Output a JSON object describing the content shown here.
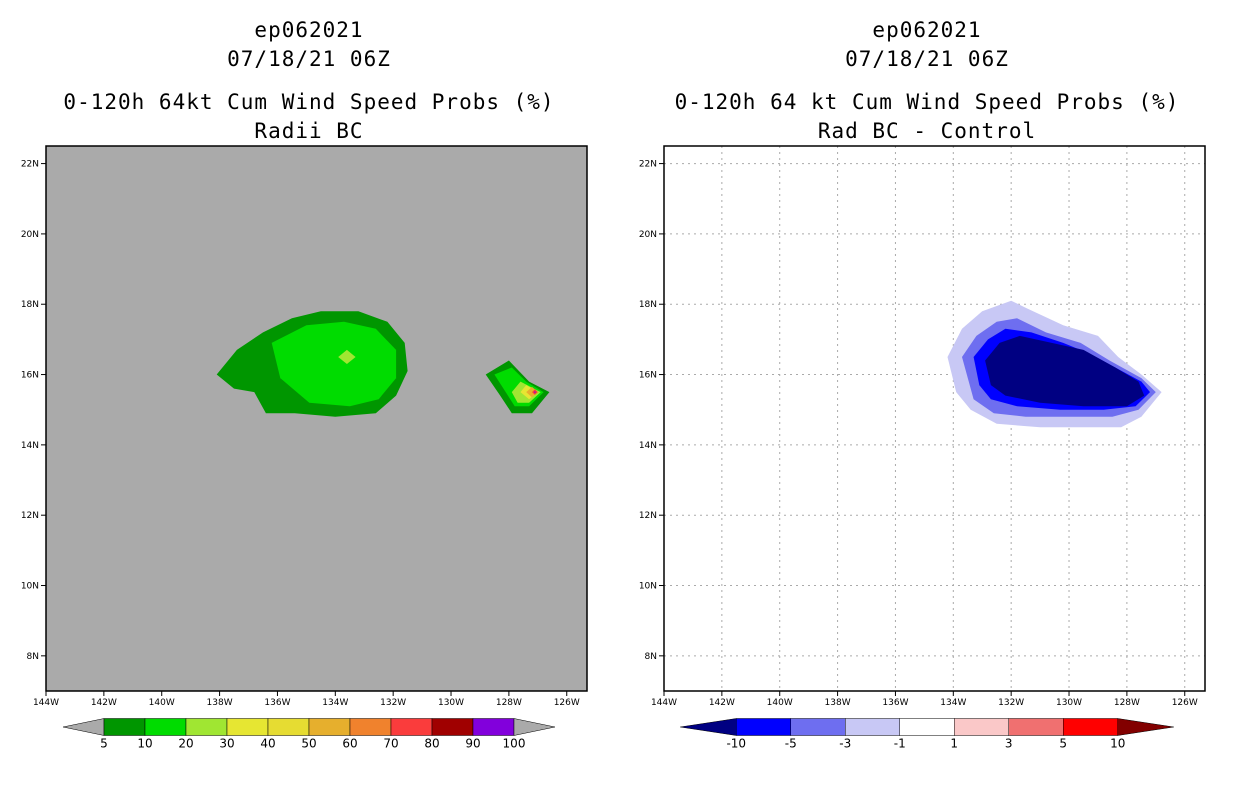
{
  "panels": [
    {
      "storm_id": "ep062021",
      "datetime": "07/18/21 06Z",
      "title": "0-120h 64kt Cum Wind Speed Probs (%)",
      "subtitle": "Radii BC"
    },
    {
      "storm_id": "ep062021",
      "datetime": "07/18/21 06Z",
      "title": "0-120h 64 kt Cum Wind Speed Probs (%)",
      "subtitle": "Rad BC - Control"
    }
  ],
  "chart_data": [
    {
      "type": "heatmap",
      "title": "0-120h 64kt Cum Wind Speed Probs (%)",
      "subtitle": "Radii BC",
      "x_ticks": [
        "144W",
        "142W",
        "140W",
        "138W",
        "136W",
        "134W",
        "132W",
        "130W",
        "128W",
        "126W"
      ],
      "y_ticks": [
        "8N",
        "10N",
        "12N",
        "14N",
        "16N",
        "18N",
        "20N",
        "22N"
      ],
      "xlim": [
        -144,
        -125.3
      ],
      "ylim": [
        7,
        22.5
      ],
      "grid": false,
      "background_color": "#aaaaaa",
      "colorbar": {
        "labels": [
          "5",
          "10",
          "20",
          "30",
          "40",
          "50",
          "60",
          "70",
          "80",
          "90",
          "100"
        ],
        "colors": [
          "#009600",
          "#00dc00",
          "#a0e632",
          "#e6e632",
          "#e6dc32",
          "#e6af2d",
          "#f0822d",
          "#fa3c3c",
          "#a00000",
          "#8200dc"
        ],
        "under_color": "#aaaaaa",
        "over_color": "#aaaaaa"
      },
      "contours": [
        {
          "level": 5,
          "color": "#009600",
          "points": [
            [
              -138.1,
              16.0
            ],
            [
              -137.4,
              16.7
            ],
            [
              -136.5,
              17.2
            ],
            [
              -135.5,
              17.6
            ],
            [
              -134.5,
              17.8
            ],
            [
              -133.2,
              17.8
            ],
            [
              -132.2,
              17.5
            ],
            [
              -131.6,
              16.9
            ],
            [
              -131.5,
              16.1
            ],
            [
              -131.9,
              15.4
            ],
            [
              -132.6,
              14.9
            ],
            [
              -134.0,
              14.8
            ],
            [
              -135.4,
              14.9
            ],
            [
              -136.4,
              14.9
            ],
            [
              -136.8,
              15.5
            ],
            [
              -137.5,
              15.6
            ],
            [
              -138.1,
              16.0
            ]
          ]
        },
        {
          "level": 10,
          "color": "#00dc00",
          "points": [
            [
              -136.2,
              16.9
            ],
            [
              -135.0,
              17.4
            ],
            [
              -133.7,
              17.5
            ],
            [
              -132.6,
              17.3
            ],
            [
              -131.9,
              16.7
            ],
            [
              -131.9,
              15.9
            ],
            [
              -132.5,
              15.3
            ],
            [
              -133.5,
              15.1
            ],
            [
              -134.9,
              15.2
            ],
            [
              -135.9,
              15.9
            ],
            [
              -136.2,
              16.9
            ]
          ]
        },
        {
          "level": 20,
          "color": "#a0e632",
          "points": [
            [
              -133.6,
              16.7
            ],
            [
              -133.3,
              16.5
            ],
            [
              -133.6,
              16.3
            ],
            [
              -133.9,
              16.5
            ],
            [
              -133.6,
              16.7
            ]
          ]
        },
        {
          "level": 5,
          "color": "#009600",
          "points": [
            [
              -128.8,
              16.0
            ],
            [
              -128.0,
              16.4
            ],
            [
              -127.3,
              15.8
            ],
            [
              -126.6,
              15.5
            ],
            [
              -127.2,
              14.9
            ],
            [
              -127.9,
              14.9
            ],
            [
              -128.3,
              15.4
            ],
            [
              -128.8,
              16.0
            ]
          ]
        },
        {
          "level": 10,
          "color": "#00dc00",
          "points": [
            [
              -128.5,
              16.0
            ],
            [
              -127.9,
              16.2
            ],
            [
              -127.4,
              15.8
            ],
            [
              -126.8,
              15.5
            ],
            [
              -127.3,
              15.1
            ],
            [
              -127.8,
              15.1
            ],
            [
              -128.5,
              16.0
            ]
          ]
        },
        {
          "level": 20,
          "color": "#a0e632",
          "points": [
            [
              -127.6,
              15.8
            ],
            [
              -126.9,
              15.5
            ],
            [
              -127.3,
              15.2
            ],
            [
              -127.7,
              15.2
            ],
            [
              -127.9,
              15.5
            ],
            [
              -127.6,
              15.8
            ]
          ]
        },
        {
          "level": 30,
          "color": "#e6e632",
          "points": [
            [
              -127.4,
              15.7
            ],
            [
              -127.0,
              15.5
            ],
            [
              -127.3,
              15.3
            ],
            [
              -127.6,
              15.5
            ],
            [
              -127.4,
              15.7
            ]
          ]
        },
        {
          "level": 50,
          "color": "#e6af2d",
          "points": [
            [
              -127.2,
              15.65
            ],
            [
              -127.0,
              15.5
            ],
            [
              -127.2,
              15.35
            ],
            [
              -127.4,
              15.5
            ],
            [
              -127.2,
              15.65
            ]
          ]
        },
        {
          "level": 70,
          "color": "#fa3c3c",
          "points": [
            [
              -127.1,
              15.58
            ],
            [
              -127.0,
              15.5
            ],
            [
              -127.1,
              15.42
            ],
            [
              -127.2,
              15.5
            ],
            [
              -127.1,
              15.58
            ]
          ]
        },
        {
          "level": 90,
          "color": "#8200dc",
          "points": [
            [
              -127.1,
              15.53
            ],
            [
              -127.07,
              15.5
            ],
            [
              -127.1,
              15.47
            ],
            [
              -127.13,
              15.5
            ],
            [
              -127.1,
              15.53
            ]
          ]
        }
      ]
    },
    {
      "type": "heatmap",
      "title": "0-120h 64 kt Cum Wind Speed Probs (%)",
      "subtitle": "Rad BC - Control",
      "x_ticks": [
        "144W",
        "142W",
        "140W",
        "138W",
        "136W",
        "134W",
        "132W",
        "130W",
        "128W",
        "126W"
      ],
      "y_ticks": [
        "8N",
        "10N",
        "12N",
        "14N",
        "16N",
        "18N",
        "20N",
        "22N"
      ],
      "xlim": [
        -144,
        -125.3
      ],
      "ylim": [
        7,
        22.5
      ],
      "grid": true,
      "background_color": "#ffffff",
      "colorbar": {
        "labels": [
          "-10",
          "-5",
          "-3",
          "-1",
          "1",
          "3",
          "5",
          "10"
        ],
        "colors": [
          "#0000ff",
          "#6e6ef0",
          "#c8c8f5",
          "#ffffff",
          "#fac8c8",
          "#f07070",
          "#ff0000"
        ],
        "under_color": "#000082",
        "over_color": "#820000"
      },
      "contours": [
        {
          "level": -1,
          "color": "#c8c8f5",
          "points": [
            [
              -134.2,
              16.5
            ],
            [
              -133.7,
              17.3
            ],
            [
              -133.0,
              17.8
            ],
            [
              -132.0,
              18.1
            ],
            [
              -131.5,
              17.9
            ],
            [
              -130.2,
              17.4
            ],
            [
              -129.0,
              17.1
            ],
            [
              -128.3,
              16.5
            ],
            [
              -127.5,
              16.0
            ],
            [
              -126.8,
              15.5
            ],
            [
              -127.5,
              14.8
            ],
            [
              -128.2,
              14.5
            ],
            [
              -129.5,
              14.5
            ],
            [
              -131.0,
              14.5
            ],
            [
              -132.5,
              14.6
            ],
            [
              -133.4,
              15.0
            ],
            [
              -133.9,
              15.5
            ],
            [
              -134.2,
              16.5
            ]
          ]
        },
        {
          "level": -3,
          "color": "#6e6ef0",
          "points": [
            [
              -133.7,
              16.5
            ],
            [
              -133.2,
              17.1
            ],
            [
              -132.5,
              17.5
            ],
            [
              -131.8,
              17.6
            ],
            [
              -130.8,
              17.2
            ],
            [
              -129.6,
              16.9
            ],
            [
              -128.6,
              16.4
            ],
            [
              -127.5,
              15.9
            ],
            [
              -127.0,
              15.5
            ],
            [
              -127.6,
              15.0
            ],
            [
              -128.5,
              14.8
            ],
            [
              -130.0,
              14.8
            ],
            [
              -131.5,
              14.8
            ],
            [
              -132.6,
              14.9
            ],
            [
              -133.3,
              15.3
            ],
            [
              -133.7,
              16.5
            ]
          ]
        },
        {
          "level": -5,
          "color": "#0000ff",
          "points": [
            [
              -133.3,
              16.5
            ],
            [
              -132.8,
              17.0
            ],
            [
              -132.2,
              17.3
            ],
            [
              -131.3,
              17.2
            ],
            [
              -130.2,
              16.9
            ],
            [
              -129.3,
              16.6
            ],
            [
              -128.4,
              16.2
            ],
            [
              -127.5,
              15.8
            ],
            [
              -127.2,
              15.5
            ],
            [
              -127.7,
              15.1
            ],
            [
              -128.8,
              15.0
            ],
            [
              -130.3,
              15.0
            ],
            [
              -131.8,
              15.1
            ],
            [
              -132.7,
              15.3
            ],
            [
              -133.1,
              15.7
            ],
            [
              -133.3,
              16.5
            ]
          ]
        },
        {
          "level": -10,
          "color": "#000082",
          "points": [
            [
              -132.9,
              16.4
            ],
            [
              -132.4,
              16.9
            ],
            [
              -131.7,
              17.1
            ],
            [
              -130.6,
              16.9
            ],
            [
              -129.5,
              16.7
            ],
            [
              -128.4,
              16.2
            ],
            [
              -127.6,
              15.8
            ],
            [
              -127.4,
              15.4
            ],
            [
              -128.0,
              15.1
            ],
            [
              -129.5,
              15.1
            ],
            [
              -131.0,
              15.2
            ],
            [
              -132.2,
              15.4
            ],
            [
              -132.7,
              15.7
            ],
            [
              -132.9,
              16.4
            ]
          ]
        }
      ]
    }
  ]
}
